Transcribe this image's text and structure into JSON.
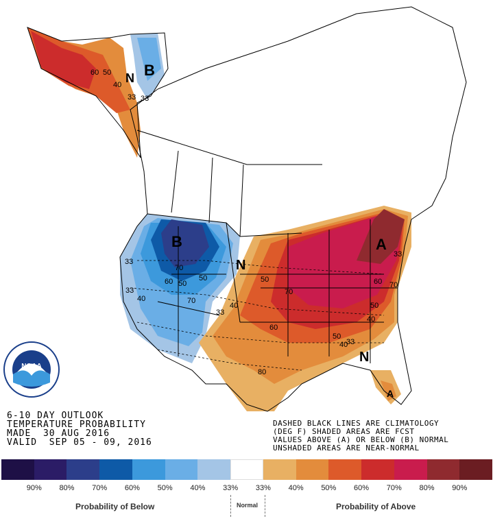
{
  "map": {
    "region_labels": [
      {
        "name": "label-B-alaska",
        "text": "B"
      },
      {
        "name": "label-N-alaska",
        "text": "N"
      },
      {
        "name": "label-B-west",
        "text": "B"
      },
      {
        "name": "label-N-plains",
        "text": "N"
      },
      {
        "name": "label-A-northeast",
        "text": "A"
      },
      {
        "name": "label-N-southeast",
        "text": "N"
      },
      {
        "name": "label-A-florida",
        "text": "A"
      }
    ],
    "contour_labels": [
      "60",
      "50",
      "40",
      "33",
      "33",
      "50",
      "70",
      "60",
      "50",
      "40",
      "33",
      "70",
      "33",
      "70",
      "50",
      "60",
      "40",
      "33",
      "50",
      "40",
      "60",
      "70",
      "50",
      "40",
      "33",
      "80",
      "33"
    ]
  },
  "outlook": {
    "line1": "6-10 DAY OUTLOOK",
    "line2": "TEMPERATURE PROBABILITY",
    "line3": "MADE  30 AUG 2016",
    "line4": "VALID  SEP 05 - 09, 2016"
  },
  "notes": {
    "line1": "DASHED BLACK LINES ARE CLIMATOLOGY",
    "line2": "(DEG F) SHADED AREAS ARE FCST",
    "line3": "VALUES ABOVE (A) OR BELOW (B) NORMAL",
    "line4": "UNSHADED AREAS ARE NEAR-NORMAL"
  },
  "logo": {
    "text": "NOAA",
    "ring_text": "NATIONAL OCEANIC AND ATMOSPHERIC ADMINISTRATION  U.S. DEPARTMENT OF COMMERCE"
  },
  "legend": {
    "colors": [
      "#1e1046",
      "#2b1c66",
      "#2c3e8a",
      "#0e5aa7",
      "#3c99dc",
      "#6aaee6",
      "#a4c5e6",
      "#ffffff",
      "#e8b063",
      "#e38c3c",
      "#dd5a2a",
      "#cc2c2c",
      "#c91c4d",
      "#8f2a2f",
      "#6b1d22"
    ],
    "percent_labels": [
      "90%",
      "80%",
      "70%",
      "60%",
      "50%",
      "40%",
      "33%",
      "33%",
      "40%",
      "50%",
      "60%",
      "70%",
      "80%",
      "90%"
    ],
    "below_label": "Probability of Below",
    "normal_label": "Normal",
    "above_label": "Probability of Above"
  }
}
